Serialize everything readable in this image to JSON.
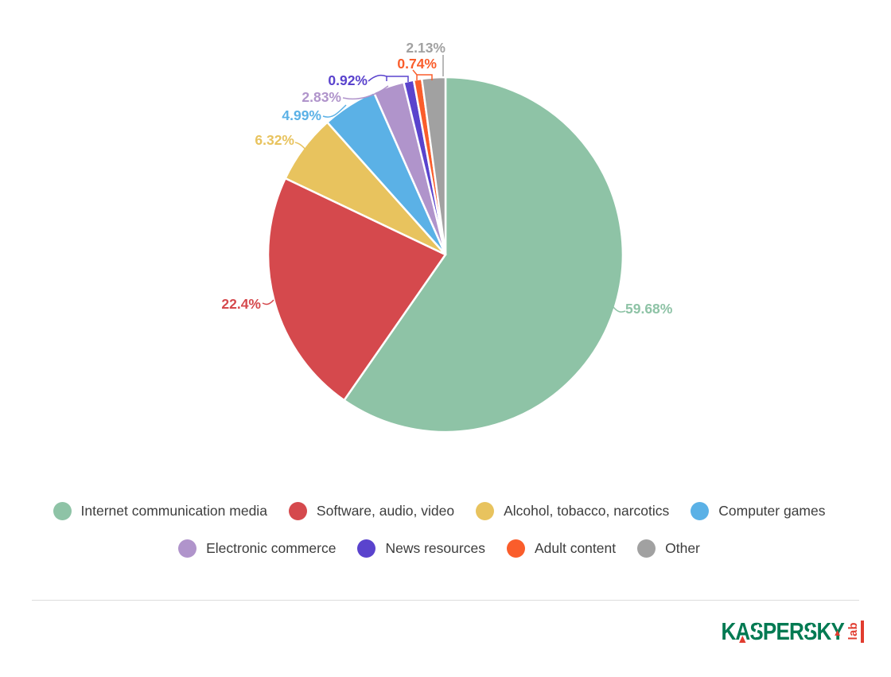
{
  "chart_data": {
    "type": "pie",
    "start_angle": "top",
    "direction": "clockwise",
    "legend_position": "bottom",
    "slices": [
      {
        "label": "Internet communication media",
        "value": 59.68,
        "display": "59.68%",
        "color": "#8ec3a6"
      },
      {
        "label": "Software, audio, video",
        "value": 22.4,
        "display": "22.4%",
        "color": "#d5494d"
      },
      {
        "label": "Alcohol, tobacco, narcotics",
        "value": 6.32,
        "display": "6.32%",
        "color": "#e8c35e"
      },
      {
        "label": "Computer games",
        "value": 4.99,
        "display": "4.99%",
        "color": "#5bb1e6"
      },
      {
        "label": "Electronic commerce",
        "value": 2.83,
        "display": "2.83%",
        "color": "#b094cb"
      },
      {
        "label": "News resources",
        "value": 0.92,
        "display": "0.92%",
        "color": "#5a43cd"
      },
      {
        "label": "Adult content",
        "value": 0.74,
        "display": "0.74%",
        "color": "#fa5d2b"
      },
      {
        "label": "Other",
        "value": 2.13,
        "display": "2.13%",
        "color": "#a1a1a1"
      }
    ]
  },
  "legend": {
    "row_split": 4
  },
  "footer": {
    "brand": "KASPERSKY",
    "brand_suffix": "lab"
  }
}
